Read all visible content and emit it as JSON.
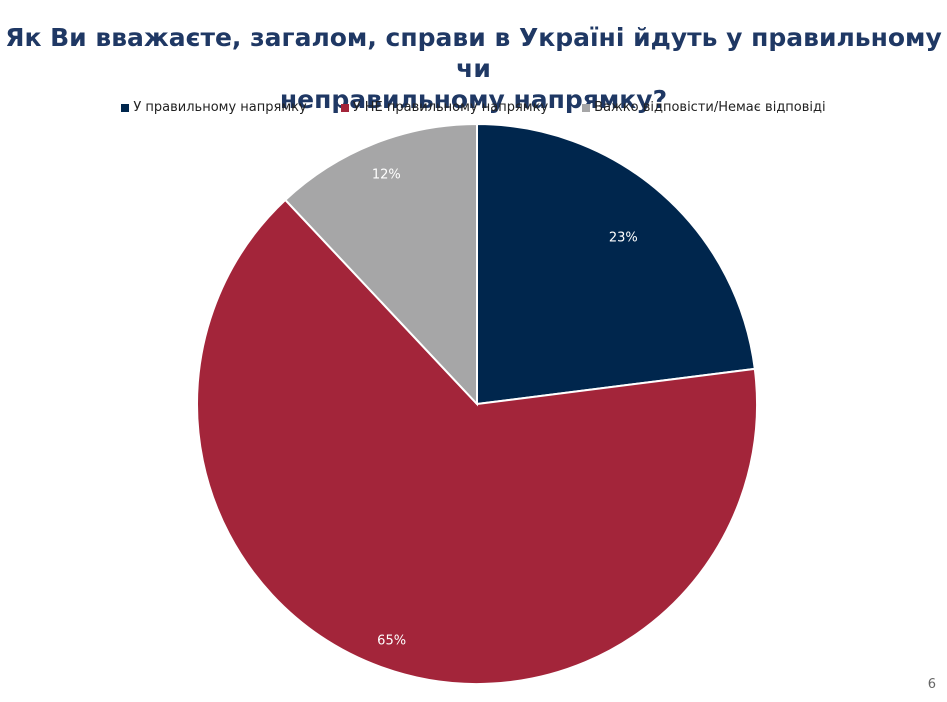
{
  "slide": {
    "title_line1": "Як Ви вважаєте, загалом, справи в Україні йдуть у правильному чи",
    "title_line2": "неправильному напрямку?",
    "page_number": "6"
  },
  "chart_data": {
    "type": "pie",
    "title": "Як Ви вважаєте, загалом, справи в Україні йдуть у правильному чи неправильному напрямку?",
    "legend_position": "top",
    "categories": [
      "У правильному напрямку",
      "У НЕ правильному напрямку",
      "Важко відповісти/Немає відповіді"
    ],
    "values": [
      23,
      65,
      12
    ],
    "labels": [
      "23%",
      "65%",
      "12%"
    ],
    "colors": [
      "#00264d",
      "#a3253a",
      "#a6a6a7"
    ]
  }
}
